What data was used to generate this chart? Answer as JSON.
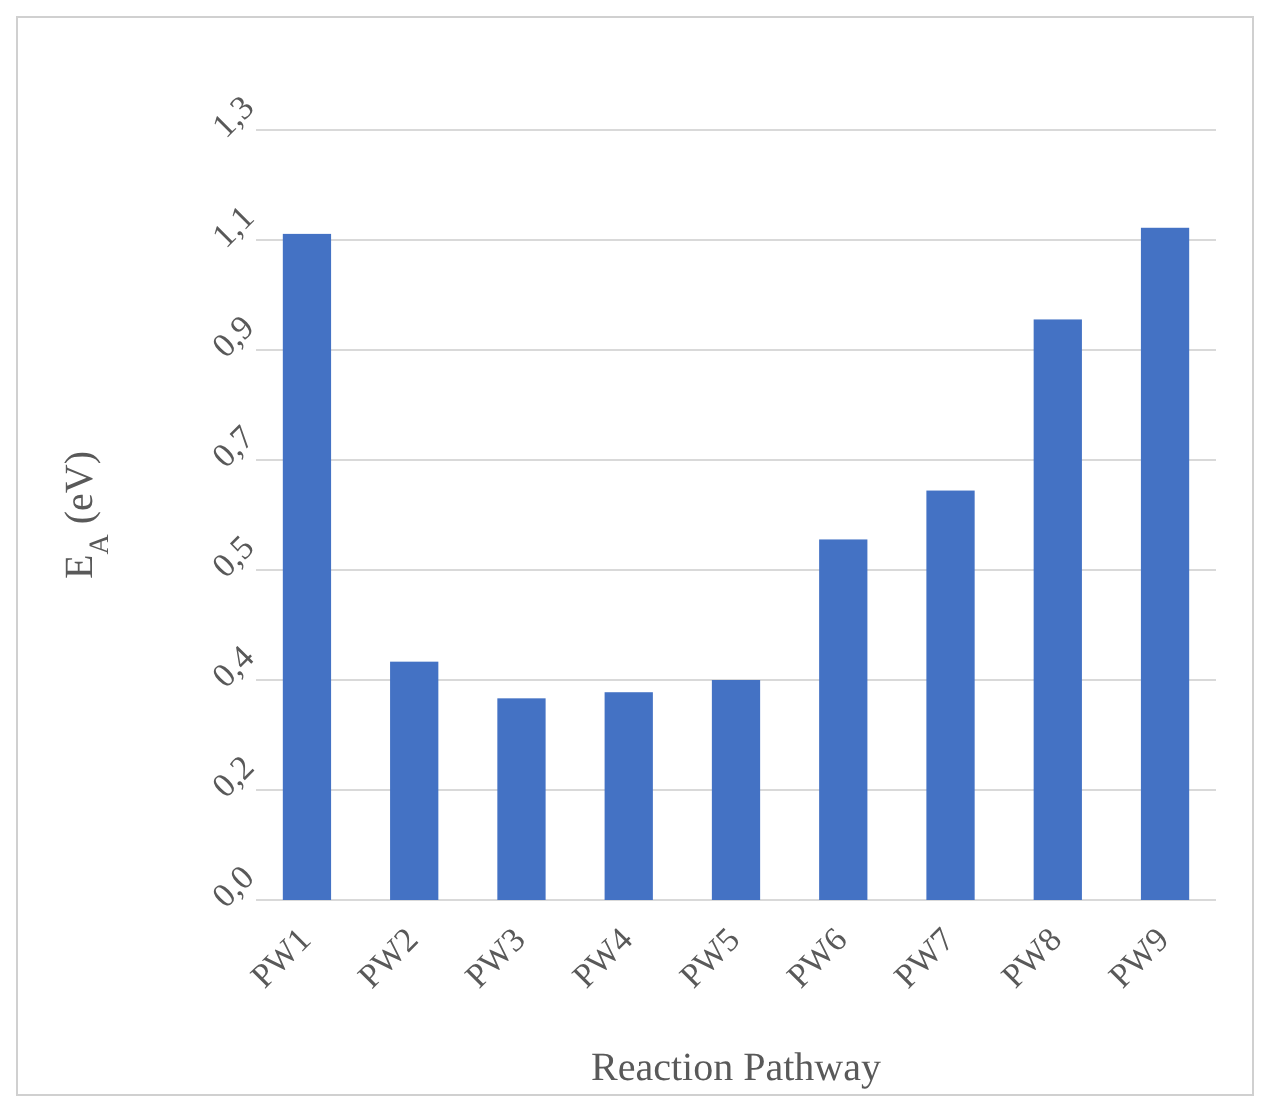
{
  "chart_data": {
    "type": "bar",
    "xlabel": "Reaction Pathway",
    "ylabel": "E$_{A}$ (eV)",
    "categories": [
      "PW1",
      "PW2",
      "PW3",
      "PW4",
      "PW5",
      "PW6",
      "PW7",
      "PW8",
      "PW9"
    ],
    "values": [
      1.09,
      0.39,
      0.33,
      0.34,
      0.36,
      0.59,
      0.67,
      0.95,
      1.1
    ],
    "color": "#4472c4",
    "ylim": [
      0,
      1.26
    ],
    "yticks": [
      {
        "value": 0,
        "label": "0,0"
      },
      {
        "value": 0.18,
        "label": "0,2"
      },
      {
        "value": 0.36,
        "label": "0,4"
      },
      {
        "value": 0.54,
        "label": "0,5"
      },
      {
        "value": 0.72,
        "label": "0,7"
      },
      {
        "value": 0.9,
        "label": "0,9"
      },
      {
        "value": 1.08,
        "label": "1,1"
      },
      {
        "value": 1.26,
        "label": "1,3"
      }
    ],
    "grid": "y"
  }
}
